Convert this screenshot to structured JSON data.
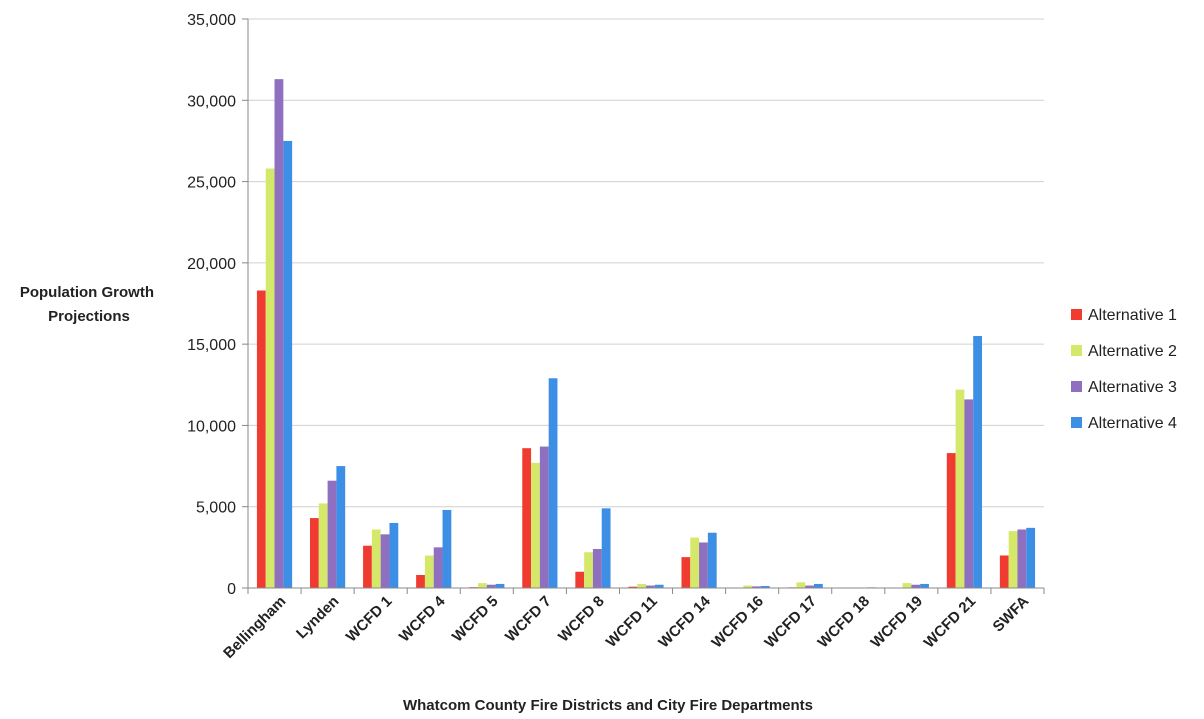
{
  "chart_data": {
    "type": "bar",
    "title": "",
    "ylabel": "Population Growth Projections",
    "xlabel": "Whatcom County Fire Districts and City Fire Departments",
    "ylim": [
      0,
      35000
    ],
    "yticks": [
      0,
      5000,
      10000,
      15000,
      20000,
      25000,
      30000,
      35000
    ],
    "ytick_labels": [
      "0",
      "5,000",
      "10,000",
      "15,000",
      "20,000",
      "25,000",
      "30,000",
      "35,000"
    ],
    "grid": true,
    "legend_position": "right",
    "categories": [
      "Bellingham",
      "Lynden",
      "WCFD 1",
      "WCFD 4",
      "WCFD 5",
      "WCFD 7",
      "WCFD 8",
      "WCFD 11",
      "WCFD 14",
      "WCFD 16",
      "WCFD 17",
      "WCFD 18",
      "WCFD 19",
      "WCFD 21",
      "SWFA"
    ],
    "series": [
      {
        "name": "Alternative 1",
        "color": "#f03c30",
        "values": [
          18300,
          4300,
          2600,
          800,
          50,
          8600,
          1000,
          80,
          1900,
          30,
          40,
          10,
          20,
          8300,
          2000
        ]
      },
      {
        "name": "Alternative 2",
        "color": "#d6e86a",
        "values": [
          25800,
          5200,
          3600,
          2000,
          300,
          7700,
          2200,
          250,
          3100,
          150,
          350,
          30,
          300,
          12200,
          3500
        ]
      },
      {
        "name": "Alternative 3",
        "color": "#8e6fc0",
        "values": [
          31300,
          6600,
          3300,
          2500,
          200,
          8700,
          2400,
          150,
          2800,
          100,
          150,
          20,
          200,
          11600,
          3600
        ]
      },
      {
        "name": "Alternative 4",
        "color": "#3d8fe6",
        "values": [
          27500,
          7500,
          4000,
          4800,
          250,
          12900,
          4900,
          200,
          3400,
          120,
          250,
          40,
          250,
          15500,
          3700
        ]
      }
    ]
  }
}
